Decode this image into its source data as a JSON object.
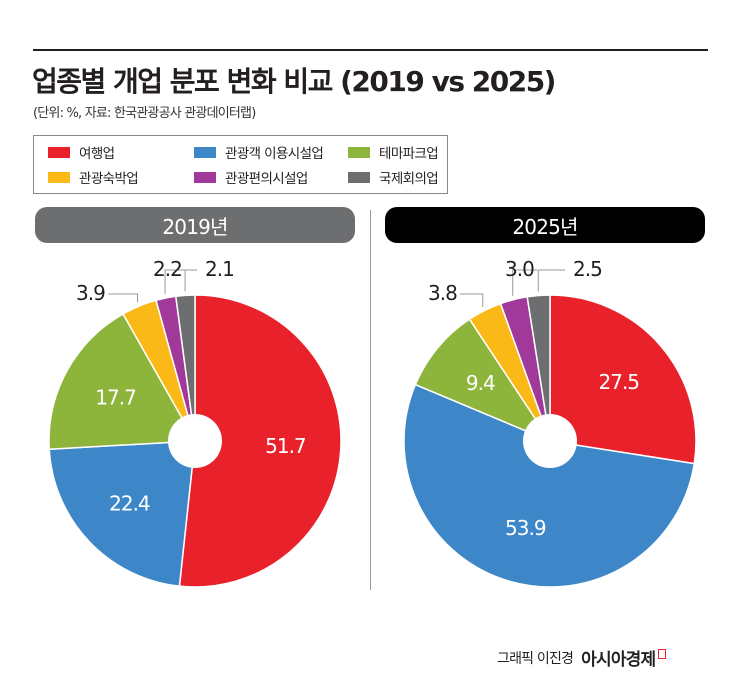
{
  "title": "업종별 개업 분포 변화 비교 (2019 vs 2025)",
  "subtitle": "(단위: %, 자료: 한국관광공사 관광데이터랩)",
  "credit": {
    "byline": "그래픽 이진경",
    "brand": "아시아경제"
  },
  "chart_data": [
    {
      "type": "pie",
      "title": "2019년",
      "donut": true,
      "header_color": "#6d6e70",
      "categories": [
        "여행업",
        "관광객 이용시설업",
        "테마파크업",
        "관광숙박업",
        "관광편의시설업",
        "국제회의업"
      ],
      "values": [
        51.7,
        22.4,
        17.7,
        3.9,
        2.2,
        2.1
      ],
      "colors": [
        "#e8212a",
        "#3d87c8",
        "#8db53c",
        "#fbb917",
        "#a0399a",
        "#6d6e70"
      ]
    },
    {
      "type": "pie",
      "title": "2025년",
      "donut": true,
      "header_color": "#000000",
      "categories": [
        "여행업",
        "관광객 이용시설업",
        "테마파크업",
        "관광숙박업",
        "관광편의시설업",
        "국제회의업"
      ],
      "values": [
        27.5,
        53.9,
        9.4,
        3.8,
        3.0,
        2.5
      ],
      "colors": [
        "#e8212a",
        "#3d87c8",
        "#8db53c",
        "#fbb917",
        "#a0399a",
        "#6d6e70"
      ]
    }
  ],
  "legend": [
    {
      "label": "여행업",
      "color": "#e8212a"
    },
    {
      "label": "관광객 이용시설업",
      "color": "#3d87c8"
    },
    {
      "label": "테마파크업",
      "color": "#8db53c"
    },
    {
      "label": "관광숙박업",
      "color": "#fbb917"
    },
    {
      "label": "관광편의시설업",
      "color": "#a0399a"
    },
    {
      "label": "국제회의업",
      "color": "#6d6e70"
    }
  ]
}
